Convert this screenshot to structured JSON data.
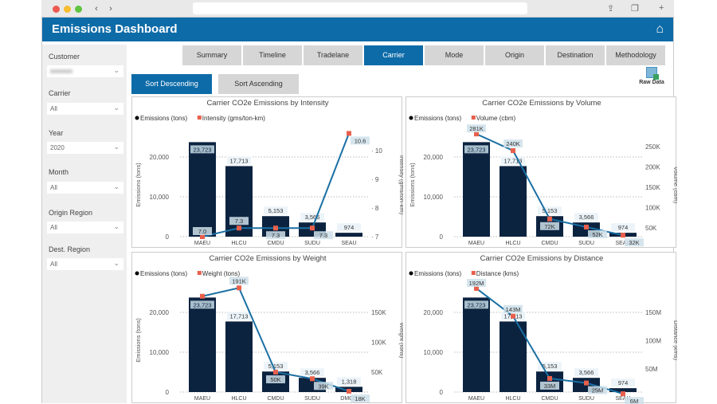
{
  "app": {
    "title": "Emissions Dashboard",
    "home_icon": "home-icon"
  },
  "filters": [
    {
      "label": "Customer",
      "value": ""
    },
    {
      "label": "Carrier",
      "value": "All"
    },
    {
      "label": "Year",
      "value": "2020"
    },
    {
      "label": "Month",
      "value": "All"
    },
    {
      "label": "Origin Region",
      "value": "All"
    },
    {
      "label": "Dest. Region",
      "value": "All"
    }
  ],
  "tabs": [
    {
      "label": "Summary"
    },
    {
      "label": "Timeline"
    },
    {
      "label": "Tradelane"
    },
    {
      "label": "Carrier",
      "active": true
    },
    {
      "label": "Mode"
    },
    {
      "label": "Origin"
    },
    {
      "label": "Destination"
    },
    {
      "label": "Methodology"
    }
  ],
  "sort": {
    "desc": "Sort Descending",
    "asc": "Sort Ascending"
  },
  "raw_data": "Raw Data",
  "colors": {
    "brand": "#0d6ba8",
    "bar": "#0c2340",
    "line": "#1a6fa3",
    "marker": "#e8604c"
  },
  "chart_data": [
    {
      "type": "bar+line",
      "title": "Carrier CO2e Emissions by Intensity",
      "legend": [
        "Emissions (tons)",
        "Intensity (gms/ton-km)"
      ],
      "ylabel": "Emissions (tons)",
      "y2label": "Intensity (gms/ton-km)",
      "categories": [
        "MAEU",
        "HLCU",
        "CMDU",
        "SUDU",
        "SEAU"
      ],
      "bars": [
        23723,
        17713,
        5153,
        3566,
        974
      ],
      "bar_labels": [
        "23,723",
        "17,713",
        "5,153",
        "3,566",
        "974"
      ],
      "line": [
        7.0,
        7.3,
        7.3,
        7.3,
        10.6
      ],
      "line_labels": [
        "7.0",
        "7.3",
        "7.3",
        "7.3",
        "10.6"
      ],
      "ylim": [
        0,
        27000
      ],
      "yticks": [
        0,
        10000,
        20000
      ],
      "ytick_labels": [
        "0",
        "10,000",
        "20,000"
      ],
      "y2lim": [
        7,
        10.75
      ],
      "y2ticks": [
        7,
        8,
        9,
        10
      ],
      "y2tick_labels": [
        "7",
        "8",
        "9",
        "10"
      ]
    },
    {
      "type": "bar+line",
      "title": "Carrier CO2e Emissions by Volume",
      "legend": [
        "Emissions (tons)",
        "Volume (cbm)"
      ],
      "ylabel": "Emissions (tons)",
      "y2label": "Volume (cbm)",
      "categories": [
        "MAEU",
        "HLCU",
        "CMDU",
        "SUDU",
        "SEAU"
      ],
      "bars": [
        23723,
        17713,
        5153,
        3566,
        974
      ],
      "bar_labels": [
        "23,723",
        "17,713",
        "5,153",
        "3,566",
        "974"
      ],
      "line": [
        281000,
        240000,
        72000,
        52000,
        32000
      ],
      "line_labels": [
        "281K",
        "240K",
        "72K",
        "52K",
        "32K"
      ],
      "ylim": [
        0,
        27000
      ],
      "yticks": [
        0,
        10000,
        20000
      ],
      "ytick_labels": [
        "0",
        "10,000",
        "20,000"
      ],
      "y2lim": [
        28400,
        293000
      ],
      "y2ticks": [
        50000,
        100000,
        150000,
        200000,
        250000
      ],
      "y2tick_labels": [
        "50K",
        "100K",
        "150K",
        "200K",
        "250K"
      ]
    },
    {
      "type": "bar+line",
      "title": "Carrier CO2e Emissions by Weight",
      "legend": [
        "Emissions (tons)",
        "Weight (tons)"
      ],
      "ylabel": "Emissions (tons)",
      "y2label": "Weight (tons)",
      "categories": [
        "MAEU",
        "HLCU",
        "CMDU",
        "SUDU",
        "DMCQ"
      ],
      "bars": [
        23723,
        17713,
        5153,
        3566,
        1318
      ],
      "bar_labels": [
        "23,723",
        "17,713",
        "5,153",
        "3,566",
        "1,318"
      ],
      "line": [
        177000,
        191000,
        50000,
        39000,
        18000
      ],
      "line_labels": [
        "",
        "191K",
        "50K",
        "39K",
        "18K"
      ],
      "ylim": [
        0,
        27000
      ],
      "yticks": [
        0,
        10000,
        20000
      ],
      "ytick_labels": [
        "0",
        "10,000",
        "20,000"
      ],
      "y2lim": [
        16700,
        196700
      ],
      "y2ticks": [
        50000,
        100000,
        150000
      ],
      "y2tick_labels": [
        "50K",
        "100K",
        "150K"
      ]
    },
    {
      "type": "bar+line",
      "title": "Carrier CO2e Emissions by Distance",
      "legend": [
        "Emissions (tons)",
        "Distance (kms)"
      ],
      "ylabel": "",
      "y2label": "Distance (kms)",
      "categories": [
        "MAEU",
        "HLCU",
        "CMDU",
        "SUDU",
        "SEAU"
      ],
      "bars": [
        23723,
        17713,
        5153,
        3566,
        974
      ],
      "bar_labels": [
        "23,723",
        "17,713",
        "5,153",
        "3,566",
        "974"
      ],
      "line": [
        192000000,
        143000000,
        33000000,
        25000000,
        6000000
      ],
      "line_labels": [
        "192M",
        "143M",
        "33M",
        "25M",
        "6M"
      ],
      "ylim": [
        0,
        27000
      ],
      "yticks": [
        0,
        10000,
        20000
      ],
      "ytick_labels": [
        "0",
        "10,000",
        "20,000"
      ],
      "y2lim": [
        9000000,
        199000000
      ],
      "y2ticks": [
        50000000,
        100000000,
        150000000
      ],
      "y2tick_labels": [
        "50M",
        "100M",
        "150M"
      ]
    }
  ]
}
